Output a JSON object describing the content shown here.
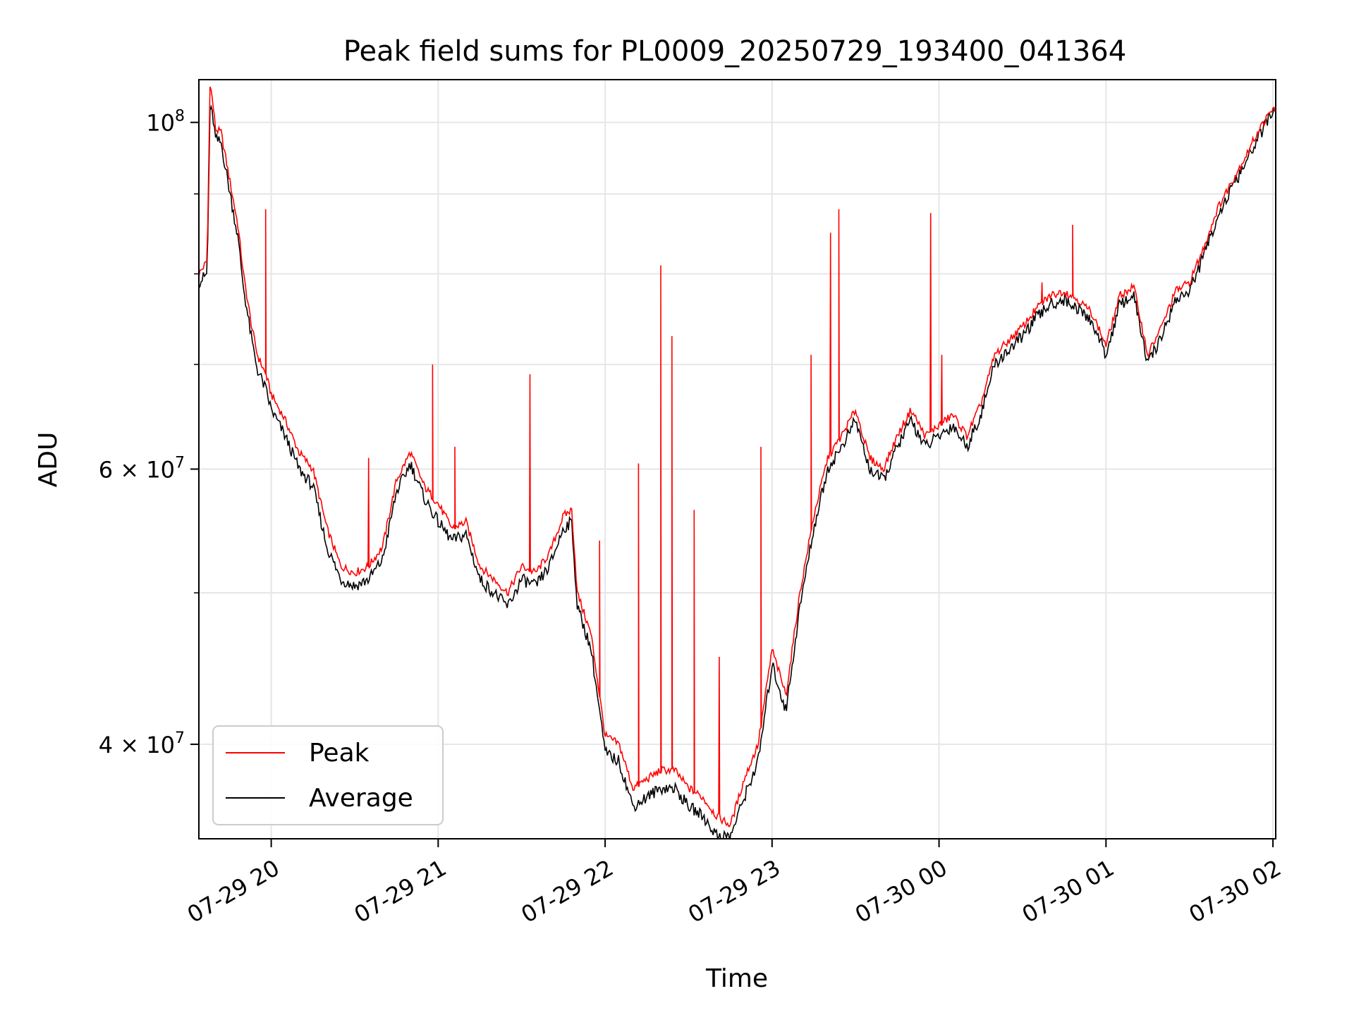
{
  "chart_data": {
    "type": "line",
    "title": "Peak field sums for PL0009_20250729_193400_041364",
    "xlabel": "Time",
    "ylabel": "ADU",
    "yscale": "log",
    "xlim": [
      "2025-07-29T19:34:00",
      "2025-07-30T02:01:00"
    ],
    "ylim": [
      34800000,
      106500000
    ],
    "x_ticks": [
      "07-29 20",
      "07-29 21",
      "07-29 22",
      "07-29 23",
      "07-30 00",
      "07-30 01",
      "07-30 02"
    ],
    "y_major_ticks": [
      {
        "value": 100000000,
        "base": "10",
        "exp": "8",
        "coef": ""
      },
      {
        "value": 60000000,
        "base": "10",
        "exp": "7",
        "coef": "6 × "
      },
      {
        "value": 40000000,
        "base": "10",
        "exp": "7",
        "coef": "4 × "
      }
    ],
    "y_minor_ticks": [
      90000000,
      80000000,
      70000000,
      50000000
    ],
    "grid": true,
    "legend": {
      "position": "lower-left",
      "entries": [
        "Peak",
        "Average"
      ]
    },
    "colors": {
      "Peak": "#ff0000",
      "Average": "#000000"
    },
    "x": [
      "19:34",
      "19:37",
      "19:38",
      "19:39",
      "19:40",
      "19:42",
      "19:45",
      "19:48",
      "19:50",
      "19:53",
      "19:55",
      "19:58",
      "20:00",
      "20:05",
      "20:10",
      "20:15",
      "20:20",
      "20:25",
      "20:30",
      "20:35",
      "20:40",
      "20:45",
      "20:50",
      "20:55",
      "21:00",
      "21:05",
      "21:10",
      "21:15",
      "21:20",
      "21:25",
      "21:30",
      "21:35",
      "21:40",
      "21:45",
      "21:48",
      "21:50",
      "21:55",
      "22:00",
      "22:05",
      "22:10",
      "22:15",
      "22:20",
      "22:25",
      "22:30",
      "22:35",
      "22:40",
      "22:45",
      "22:50",
      "22:55",
      "23:00",
      "23:05",
      "23:10",
      "23:15",
      "23:20",
      "23:25",
      "23:30",
      "23:35",
      "23:40",
      "23:45",
      "23:50",
      "23:55",
      "00:00",
      "00:05",
      "00:10",
      "00:15",
      "00:20",
      "00:25",
      "00:30",
      "00:35",
      "00:40",
      "00:45",
      "00:50",
      "00:55",
      "01:00",
      "01:05",
      "01:10",
      "01:15",
      "01:20",
      "01:25",
      "01:30",
      "01:35",
      "01:40",
      "01:45",
      "01:50",
      "01:55",
      "02:00"
    ],
    "series": [
      {
        "name": "Peak",
        "values": [
          80000000,
          81500000,
          106000000,
          103000000,
          99000000,
          98500000,
          92000000,
          86000000,
          80000000,
          74000000,
          71000000,
          69000000,
          67000000,
          64500000,
          61500000,
          60000000,
          55000000,
          52000000,
          51500000,
          52000000,
          53500000,
          59000000,
          61500000,
          58500000,
          57000000,
          55000000,
          55500000,
          52000000,
          51000000,
          50000000,
          52000000,
          51500000,
          53000000,
          56000000,
          56500000,
          50000000,
          47000000,
          40500000,
          40000000,
          37500000,
          38000000,
          38500000,
          38500000,
          37500000,
          37000000,
          36000000,
          35500000,
          38000000,
          40000000,
          46000000,
          43000000,
          50000000,
          56000000,
          61000000,
          63000000,
          65500000,
          61000000,
          60000000,
          63000000,
          65500000,
          63000000,
          64000000,
          65000000,
          63000000,
          66000000,
          71000000,
          72500000,
          74000000,
          76000000,
          77500000,
          78000000,
          77000000,
          75500000,
          72000000,
          77500000,
          78500000,
          71000000,
          74000000,
          78000000,
          79000000,
          83000000,
          88000000,
          91500000,
          95000000,
          99000000,
          102000000
        ]
      },
      {
        "name": "Average",
        "values": [
          79000000,
          80000000,
          102000000,
          101000000,
          97500000,
          97000000,
          90500000,
          84500000,
          78500000,
          72500000,
          69500000,
          67500000,
          65500000,
          63000000,
          60000000,
          58500000,
          53500000,
          51000000,
          50500000,
          51000000,
          52500000,
          58000000,
          60500000,
          57500000,
          55500000,
          54000000,
          54500000,
          51000000,
          50000000,
          49000000,
          51000000,
          50500000,
          52000000,
          55000000,
          55500000,
          49000000,
          46000000,
          39500000,
          39000000,
          36500000,
          37000000,
          37500000,
          37500000,
          36500000,
          36000000,
          35000000,
          34900000,
          37000000,
          39000000,
          45000000,
          42000000,
          49000000,
          55000000,
          60000000,
          62000000,
          64500000,
          60000000,
          59000000,
          62000000,
          64500000,
          62000000,
          63000000,
          64000000,
          62000000,
          65000000,
          70000000,
          71500000,
          73000000,
          75000000,
          76500000,
          77000000,
          76000000,
          74500000,
          71000000,
          76500000,
          77500000,
          70000000,
          73000000,
          77000000,
          78000000,
          82000000,
          87000000,
          90500000,
          94000000,
          98000000,
          101500000
        ]
      }
    ],
    "spikes": [
      {
        "x": "19:58",
        "value": 88000000
      },
      {
        "x": "20:35",
        "value": 61000000
      },
      {
        "x": "20:58",
        "value": 70000000
      },
      {
        "x": "21:06",
        "value": 62000000
      },
      {
        "x": "21:33",
        "value": 69000000
      },
      {
        "x": "21:58",
        "value": 54000000
      },
      {
        "x": "22:12",
        "value": 60500000
      },
      {
        "x": "22:20",
        "value": 81000000
      },
      {
        "x": "22:24",
        "value": 73000000
      },
      {
        "x": "22:32",
        "value": 56500000
      },
      {
        "x": "22:41",
        "value": 45500000
      },
      {
        "x": "22:56",
        "value": 62000000
      },
      {
        "x": "23:14",
        "value": 71000000
      },
      {
        "x": "23:21",
        "value": 85000000
      },
      {
        "x": "23:24",
        "value": 88000000
      },
      {
        "x": "23:57",
        "value": 87500000
      },
      {
        "x": "00:01",
        "value": 71000000
      },
      {
        "x": "00:37",
        "value": 79000000
      },
      {
        "x": "00:48",
        "value": 86000000
      }
    ]
  }
}
